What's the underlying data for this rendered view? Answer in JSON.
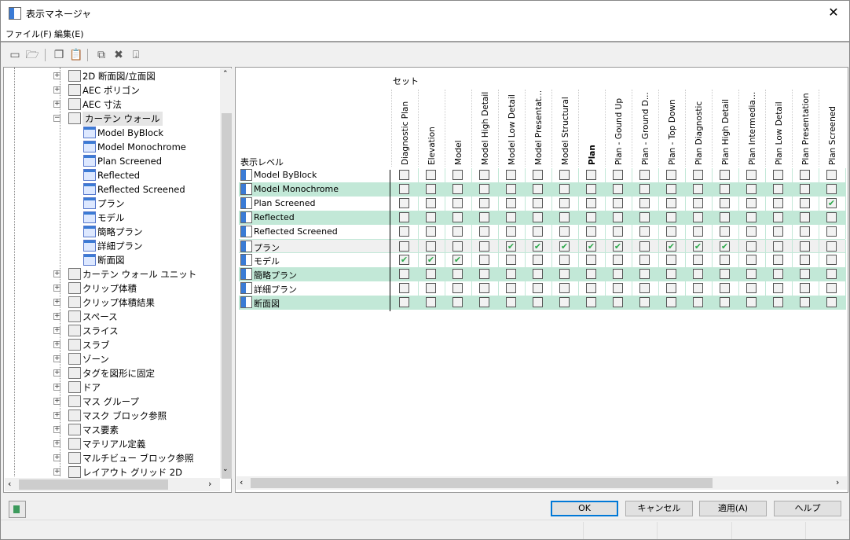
{
  "window": {
    "title": "表示マネージャ",
    "close": "✕"
  },
  "menu": [
    "ファイル(F)",
    "編集(E)"
  ],
  "toolbar": [
    {
      "name": "new-icon",
      "glyph": "▭"
    },
    {
      "name": "open-folder-icon",
      "glyph": "🗁"
    },
    {
      "name": "copy-icon",
      "glyph": "❐"
    },
    {
      "name": "paste-icon",
      "glyph": "📋"
    },
    {
      "name": "purge-icon",
      "glyph": "⧉"
    },
    {
      "name": "delete-icon",
      "glyph": "✖"
    },
    {
      "name": "update-drawing-icon",
      "glyph": "⍗"
    }
  ],
  "tree": {
    "items": [
      {
        "label": "2D 断面図/立面図",
        "level": 0,
        "exp": "+"
      },
      {
        "label": "AEC ポリゴン",
        "level": 0,
        "exp": "+"
      },
      {
        "label": "AEC 寸法",
        "level": 0,
        "exp": "+"
      },
      {
        "label": "カーテン ウォール",
        "level": 0,
        "exp": "−",
        "selected": true
      },
      {
        "label": "Model ByBlock",
        "level": 1
      },
      {
        "label": "Model Monochrome",
        "level": 1
      },
      {
        "label": "Plan Screened",
        "level": 1
      },
      {
        "label": "Reflected",
        "level": 1
      },
      {
        "label": "Reflected Screened",
        "level": 1
      },
      {
        "label": "プラン",
        "level": 1
      },
      {
        "label": "モデル",
        "level": 1
      },
      {
        "label": "簡略プラン",
        "level": 1
      },
      {
        "label": "詳細プラン",
        "level": 1
      },
      {
        "label": "断面図",
        "level": 1
      },
      {
        "label": "カーテン ウォール ユニット",
        "level": 0,
        "exp": "+"
      },
      {
        "label": "クリップ体積",
        "level": 0,
        "exp": "+"
      },
      {
        "label": "クリップ体積結果",
        "level": 0,
        "exp": "+"
      },
      {
        "label": "スペース",
        "level": 0,
        "exp": "+"
      },
      {
        "label": "スライス",
        "level": 0,
        "exp": "+"
      },
      {
        "label": "スラブ",
        "level": 0,
        "exp": "+"
      },
      {
        "label": "ゾーン",
        "level": 0,
        "exp": "+"
      },
      {
        "label": "タグを図形に固定",
        "level": 0,
        "exp": "+"
      },
      {
        "label": "ドア",
        "level": 0,
        "exp": "+"
      },
      {
        "label": "マス グループ",
        "level": 0,
        "exp": "+"
      },
      {
        "label": "マスク ブロック参照",
        "level": 0,
        "exp": "+"
      },
      {
        "label": "マス要素",
        "level": 0,
        "exp": "+"
      },
      {
        "label": "マテリアル定義",
        "level": 0,
        "exp": "+"
      },
      {
        "label": "マルチビュー ブロック参照",
        "level": 0,
        "exp": "+"
      },
      {
        "label": "レイアウト グリッド 2D",
        "level": 0,
        "exp": "+"
      }
    ]
  },
  "grid": {
    "sets_header": "セット",
    "levels_header": "表示レベル",
    "columns": [
      "Diagnostic Plan",
      "Elevation",
      "Model",
      "Model High Detail",
      "Model Low Detail",
      "Model Presentati...",
      "Model Structural",
      "Plan",
      "Plan - Gound Up",
      "Plan - Ground D...",
      "Plan - Top Down",
      "Plan Diagnostic",
      "Plan High Detail",
      "Plan Intermediate...",
      "Plan Low Detail",
      "Plan Presentation",
      "Plan Screened"
    ],
    "bold_column": "Plan",
    "rows": [
      {
        "label": "Model ByBlock",
        "checked": []
      },
      {
        "label": "Model Monochrome",
        "checked": []
      },
      {
        "label": "Plan Screened",
        "checked": [
          16
        ]
      },
      {
        "label": "Reflected",
        "checked": []
      },
      {
        "label": "Reflected Screened",
        "checked": []
      },
      {
        "label": "プラン",
        "checked": [
          4,
          5,
          6,
          7,
          8,
          10,
          11,
          12
        ]
      },
      {
        "label": "モデル",
        "checked": [
          0,
          1,
          2
        ]
      },
      {
        "label": "簡略プラン",
        "checked": []
      },
      {
        "label": "詳細プラン",
        "checked": []
      },
      {
        "label": "断面図",
        "checked": []
      }
    ],
    "check_color": "#2ea84c",
    "alt_row_color": "#c2e8d7"
  },
  "buttons": {
    "ok": "OK",
    "cancel": "キャンセル",
    "apply": "適用(A)",
    "help": "ヘルプ"
  }
}
